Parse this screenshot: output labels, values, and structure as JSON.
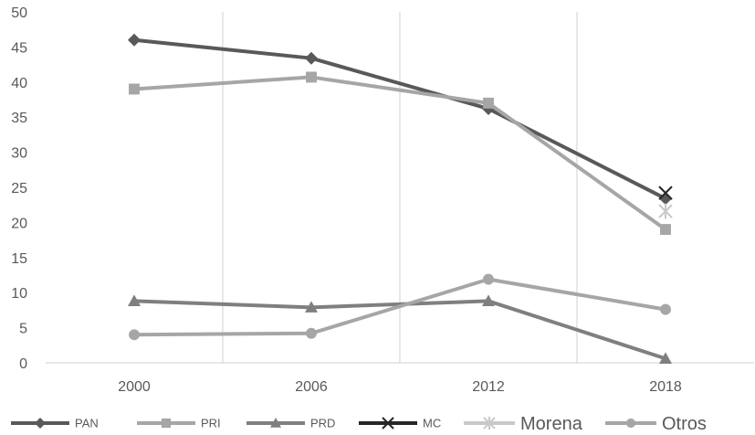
{
  "chart_data": {
    "type": "line",
    "title": "",
    "xlabel": "",
    "ylabel": "",
    "categories": [
      "2000",
      "2006",
      "2012",
      "2018"
    ],
    "ylim": [
      0,
      50
    ],
    "y_ticks": [
      0,
      5,
      10,
      15,
      20,
      25,
      30,
      35,
      40,
      45,
      50
    ],
    "grid": "vertical lines between categories",
    "legend_position": "bottom",
    "series": [
      {
        "name": "PAN",
        "values": [
          46.0,
          43.4,
          36.2,
          23.4
        ],
        "color": "#595959",
        "marker": "diamond"
      },
      {
        "name": "PRI",
        "values": [
          39.0,
          40.7,
          37.0,
          19.0
        ],
        "color": "#a6a6a6",
        "marker": "square"
      },
      {
        "name": "PRD",
        "values": [
          8.8,
          7.9,
          8.8,
          0.6
        ],
        "color": "#7f7f7f",
        "marker": "triangle"
      },
      {
        "name": "MC",
        "values": [
          null,
          null,
          null,
          24.2
        ],
        "color": "#262626",
        "marker": "x"
      },
      {
        "name": "Morena",
        "values": [
          null,
          null,
          null,
          21.6
        ],
        "color": "#c8c8c8",
        "marker": "asterisk"
      },
      {
        "name": "Otros",
        "values": [
          4.0,
          4.2,
          11.9,
          7.6
        ],
        "color": "#a6a6a6",
        "marker": "circle"
      }
    ]
  }
}
